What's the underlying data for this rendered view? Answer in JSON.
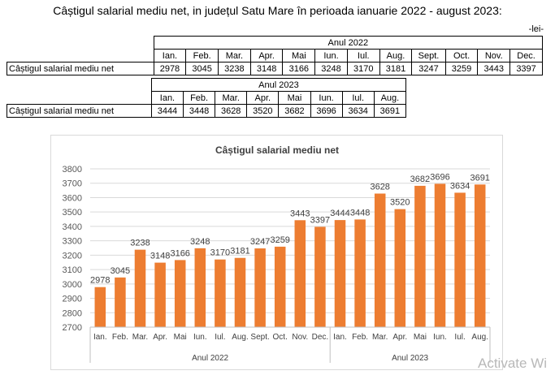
{
  "title": "Câștigul salarial mediu net, in județul Satu Mare în perioada ianuarie 2022 - august 2023:",
  "unit": "-lei-",
  "table2022": {
    "group": "Anul 2022",
    "row_label": "Câștigul salarial mediu net",
    "months": [
      "Ian.",
      "Feb.",
      "Mar.",
      "Apr.",
      "Mai",
      "Iun.",
      "Iul.",
      "Aug.",
      "Sept.",
      "Oct.",
      "Nov.",
      "Dec."
    ],
    "values": [
      "2978",
      "3045",
      "3238",
      "3148",
      "3166",
      "3248",
      "3170",
      "3181",
      "3247",
      "3259",
      "3443",
      "3397"
    ]
  },
  "table2023": {
    "group": "Anul 2023",
    "row_label": "Câștigul salarial mediu net",
    "months": [
      "Ian.",
      "Feb.",
      "Mar.",
      "Apr.",
      "Mai",
      "Iun.",
      "Iul.",
      "Aug."
    ],
    "values": [
      "3444",
      "3448",
      "3628",
      "3520",
      "3682",
      "3696",
      "3634",
      "3691"
    ]
  },
  "chart_data": {
    "type": "bar",
    "title": "Câștigul salarial mediu net",
    "categories": [
      "Ian.",
      "Feb.",
      "Mar.",
      "Apr.",
      "Mai",
      "Iun.",
      "Iul.",
      "Aug.",
      "Sept.",
      "Oct.",
      "Nov.",
      "Dec.",
      "Ian.",
      "Feb.",
      "Mar.",
      "Apr.",
      "Mai",
      "Iun.",
      "Iul.",
      "Aug."
    ],
    "groups": [
      {
        "label": "Anul 2022",
        "count": 12
      },
      {
        "label": "Anul 2023",
        "count": 8
      }
    ],
    "values": [
      2978,
      3045,
      3238,
      3148,
      3166,
      3248,
      3170,
      3181,
      3247,
      3259,
      3443,
      3397,
      3444,
      3448,
      3628,
      3520,
      3682,
      3696,
      3634,
      3691
    ],
    "ylim": [
      2700,
      3800
    ],
    "yticks": [
      2700,
      2800,
      2900,
      3000,
      3100,
      3200,
      3300,
      3400,
      3500,
      3600,
      3700,
      3800
    ],
    "color": "#ed7d31",
    "grid": true,
    "legend": "none"
  },
  "watermark": "Activate Wi"
}
